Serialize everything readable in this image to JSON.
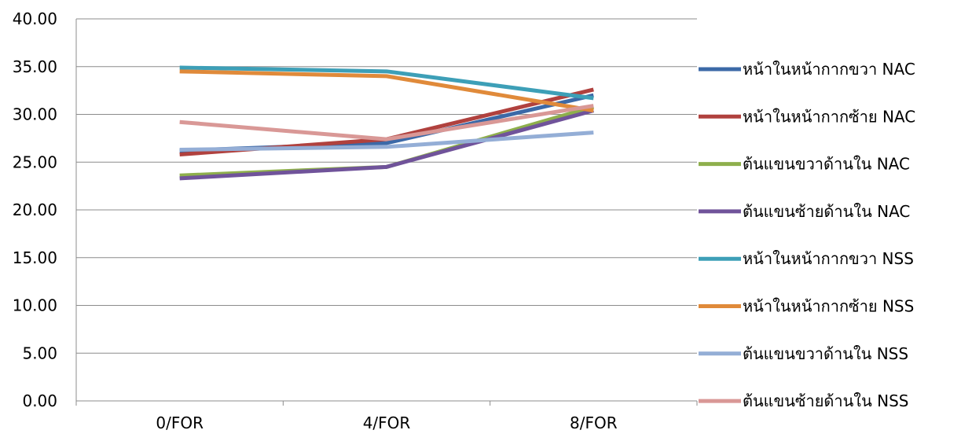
{
  "chart_data": {
    "type": "line",
    "categories": [
      "0/FOR",
      "4/FOR",
      "8/FOR"
    ],
    "ylim": [
      0,
      40
    ],
    "yticks": [
      "0.00",
      "5.00",
      "10.00",
      "15.00",
      "20.00",
      "25.00",
      "30.00",
      "35.00",
      "40.00"
    ],
    "grid": true,
    "legend_position": "right",
    "series": [
      {
        "name": "หน้าในหน้ากากขวา NAC",
        "color": "#3c69a7",
        "values": [
          26.2,
          27.0,
          32.0
        ]
      },
      {
        "name": "หน้าในหน้ากากซ้าย NAC",
        "color": "#b0413e",
        "values": [
          25.8,
          27.4,
          32.6
        ]
      },
      {
        "name": "ต้นแขนขวาด้านใน NAC",
        "color": "#8eaf4c",
        "values": [
          23.6,
          24.5,
          30.8
        ]
      },
      {
        "name": "ต้นแขนซ้ายด้านใน NAC",
        "color": "#70539a",
        "values": [
          23.3,
          24.5,
          30.4
        ]
      },
      {
        "name": "หน้าในหน้ากากขวา NSS",
        "color": "#3d9fb7",
        "values": [
          34.9,
          34.5,
          31.7
        ]
      },
      {
        "name": "หน้าในหน้ากากซ้าย NSS",
        "color": "#e08a3a",
        "values": [
          34.5,
          34.0,
          30.4
        ]
      },
      {
        "name": "ต้นแขนขวาด้านใน NSS",
        "color": "#94aed6",
        "values": [
          26.3,
          26.6,
          28.1
        ]
      },
      {
        "name": "ต้นแขนซ้ายด้านใน NSS",
        "color": "#d99896",
        "values": [
          29.2,
          27.4,
          30.9
        ]
      }
    ]
  }
}
